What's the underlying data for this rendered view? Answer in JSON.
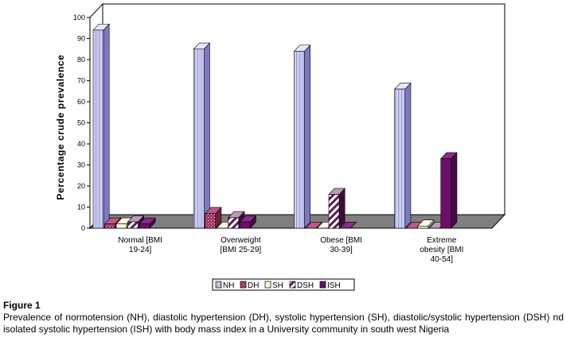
{
  "chart_data": {
    "type": "bar",
    "ylabel": "Percentage crude prevalence",
    "ylim": [
      0,
      100
    ],
    "yticks": [
      0,
      10,
      20,
      30,
      40,
      50,
      60,
      70,
      80,
      90,
      100
    ],
    "categories": [
      [
        "Normal [BMI",
        "19-24]"
      ],
      [
        "Overweight",
        "[BMI 25-29]"
      ],
      [
        "Obese [BMI",
        "30-39]"
      ],
      [
        "Extreme",
        "obesity [BMI",
        "40-54]"
      ]
    ],
    "series": [
      {
        "name": "NH",
        "values": [
          94,
          85,
          84,
          66
        ]
      },
      {
        "name": "DH",
        "values": [
          2,
          7,
          0,
          0
        ]
      },
      {
        "name": "SH",
        "values": [
          2,
          0,
          0,
          1
        ]
      },
      {
        "name": "DSH",
        "values": [
          3,
          5,
          16,
          0
        ]
      },
      {
        "name": "ISH",
        "values": [
          2,
          3,
          0,
          33
        ]
      }
    ],
    "legend_position": "bottom",
    "grid": false
  },
  "caption": {
    "title": "Figure 1",
    "text": "Prevalence of normotension (NH), diastolic hypertension (DH), systolic hypertension (SH), diastolic/systolic hypertension (DSH) nd isolated systolic hypertension (ISH) with body mass index in a University community in south west Nigeria"
  }
}
